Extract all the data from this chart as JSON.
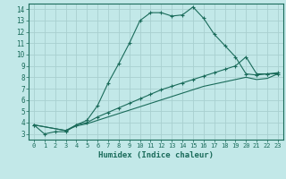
{
  "xlabel": "Humidex (Indice chaleur)",
  "ylabel": "",
  "xlim": [
    -0.5,
    23.5
  ],
  "ylim": [
    2.5,
    14.5
  ],
  "xticks": [
    0,
    1,
    2,
    3,
    4,
    5,
    6,
    7,
    8,
    9,
    10,
    11,
    12,
    13,
    14,
    15,
    16,
    17,
    18,
    19,
    20,
    21,
    22,
    23
  ],
  "yticks": [
    3,
    4,
    5,
    6,
    7,
    8,
    9,
    10,
    11,
    12,
    13,
    14
  ],
  "background_color": "#c2e8e8",
  "grid_color": "#a8d0d0",
  "line_color": "#1a6b5a",
  "line1_x": [
    0,
    1,
    2,
    3,
    4,
    5,
    6,
    7,
    8,
    9,
    10,
    11,
    12,
    13,
    14,
    15,
    16,
    17,
    18,
    19,
    20,
    21,
    22,
    23
  ],
  "line1_y": [
    3.8,
    3.0,
    3.2,
    3.2,
    3.8,
    4.2,
    5.5,
    7.5,
    9.2,
    11.0,
    13.0,
    13.7,
    13.7,
    13.4,
    13.5,
    14.2,
    13.2,
    11.8,
    10.8,
    9.8,
    8.3,
    8.2,
    8.3,
    8.3
  ],
  "line2_x": [
    0,
    3,
    4,
    5,
    6,
    7,
    8,
    9,
    10,
    11,
    12,
    13,
    14,
    15,
    16,
    17,
    18,
    19,
    20,
    21,
    22,
    23
  ],
  "line2_y": [
    3.8,
    3.3,
    3.8,
    4.0,
    4.5,
    4.9,
    5.3,
    5.7,
    6.1,
    6.5,
    6.9,
    7.2,
    7.5,
    7.8,
    8.1,
    8.4,
    8.7,
    9.0,
    9.8,
    8.3,
    8.3,
    8.4
  ],
  "line3_x": [
    0,
    3,
    4,
    5,
    6,
    7,
    8,
    9,
    10,
    11,
    12,
    13,
    14,
    15,
    16,
    17,
    18,
    19,
    20,
    21,
    22,
    23
  ],
  "line3_y": [
    3.8,
    3.3,
    3.7,
    3.9,
    4.2,
    4.5,
    4.8,
    5.1,
    5.4,
    5.7,
    6.0,
    6.3,
    6.6,
    6.9,
    7.2,
    7.4,
    7.6,
    7.8,
    8.0,
    7.8,
    7.9,
    8.3
  ]
}
